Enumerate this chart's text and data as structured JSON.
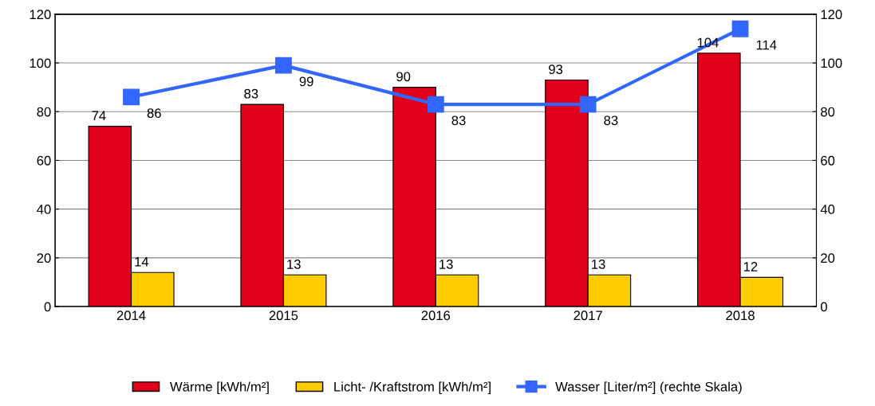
{
  "chart_data": {
    "type": "bar",
    "categories": [
      "2014",
      "2015",
      "2016",
      "2017",
      "2018"
    ],
    "series": [
      {
        "name": "Wärme [kWh/m²]",
        "color": "#e2001a",
        "values": [
          74,
          83,
          90,
          93,
          104
        ]
      },
      {
        "name": "Licht- /Kraftstrom [kWh/m²]",
        "color": "#ffcc00",
        "values": [
          14,
          13,
          13,
          13,
          12
        ]
      },
      {
        "name": "Wasser [Liter/m²] (rechte Skala)",
        "color": "#3366ff",
        "type": "line",
        "axis": "y2",
        "marker": "square",
        "values": [
          86,
          99,
          83,
          83,
          114
        ]
      }
    ],
    "ylim": [
      0,
      120
    ],
    "yticks": [
      0,
      20,
      40,
      60,
      80,
      100,
      120
    ],
    "y2lim": [
      0,
      120
    ],
    "y2ticks": [
      0,
      20,
      40,
      60,
      80,
      100,
      120
    ],
    "grid": "y",
    "legend": "bottom",
    "data_labels": true
  }
}
